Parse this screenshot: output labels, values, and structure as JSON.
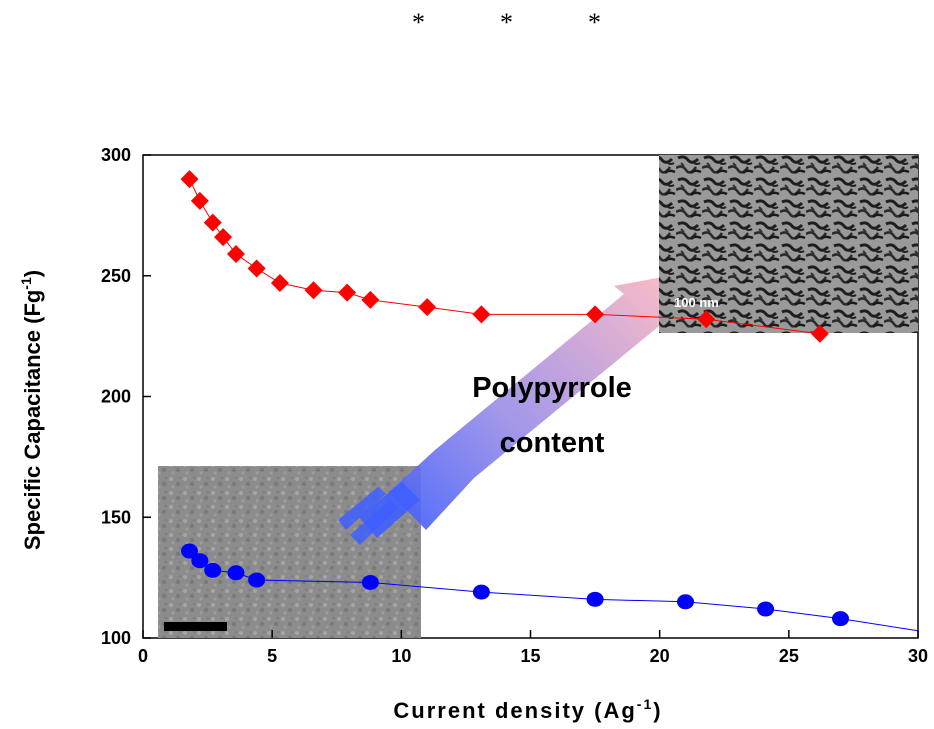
{
  "header": {
    "asterisks": [
      "*",
      "*",
      "*"
    ]
  },
  "chart_data": {
    "type": "scatter",
    "title": "",
    "xlabel": "Current density (Ag",
    "xlabel_sup": "-1",
    "xlabel_end": ")",
    "ylabel": "Specific Capacitance (Fg",
    "ylabel_sup": "-1",
    "ylabel_end": ")",
    "xlim": [
      0,
      30
    ],
    "ylim": [
      100,
      300
    ],
    "xticks": [
      "0",
      "5",
      "10",
      "15",
      "20",
      "25",
      "30"
    ],
    "yticks": [
      "100",
      "150",
      "200",
      "250",
      "300"
    ],
    "grid": false,
    "legend": "none",
    "series": [
      {
        "marker": "diamond",
        "color": "#ff0000",
        "x": [
          1.8,
          2.2,
          2.7,
          3.1,
          3.6,
          4.4,
          5.3,
          6.6,
          7.9,
          8.8,
          11.0,
          13.1,
          17.5,
          21.8,
          26.2
        ],
        "y": [
          290,
          281,
          272,
          266,
          259,
          253,
          247,
          244,
          243,
          240,
          237,
          234,
          234,
          232,
          226
        ]
      },
      {
        "marker": "circle",
        "color": "#0000ff",
        "x": [
          1.8,
          2.2,
          2.7,
          3.6,
          4.4,
          8.8,
          13.1,
          17.5,
          21.0,
          24.1,
          27.0,
          30.0
        ],
        "y": [
          136,
          132,
          128,
          127,
          124,
          123,
          119,
          116,
          115,
          112,
          108,
          103
        ]
      }
    ],
    "annotation": {
      "line1": "Polypyrrole",
      "line2": "content"
    },
    "insets": [
      {
        "name": "sem-porous-top-right",
        "scale_label": "100 nm"
      },
      {
        "name": "sem-smooth-bottom-left",
        "scale_label": ""
      }
    ],
    "colors": {
      "arrow_start": "#3355ff",
      "arrow_end": "#ffb0b8",
      "inset_light": "#8e8e8e",
      "inset_dark": "#2a2a2a"
    }
  }
}
